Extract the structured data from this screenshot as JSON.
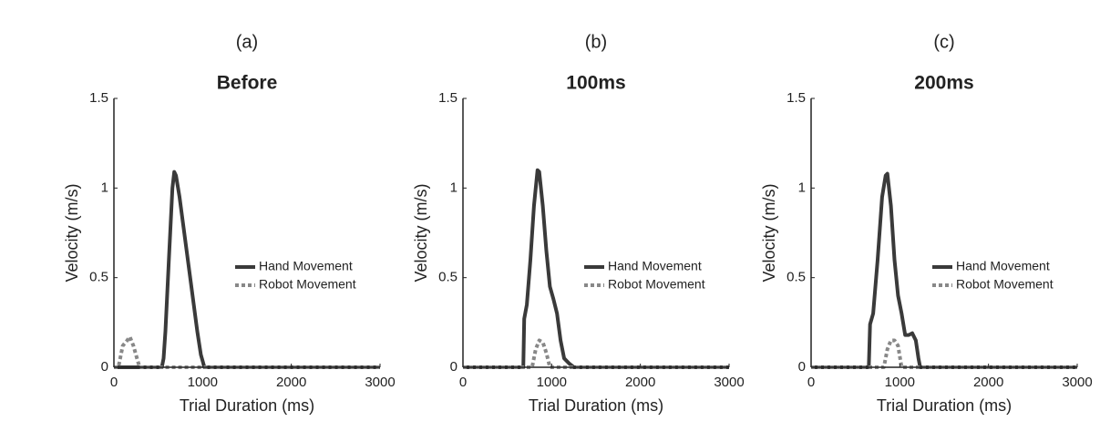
{
  "chart_data": [
    {
      "type": "line",
      "label": "(a)",
      "title": "Before",
      "xlabel": "Trial Duration (ms)",
      "ylabel": "Velocity (m/s)",
      "xlim": [
        0,
        3000
      ],
      "ylim": [
        0,
        1.5
      ],
      "xticks": [
        0,
        1000,
        2000,
        3000
      ],
      "yticks": [
        0,
        0.5,
        1,
        1.5
      ],
      "legend": "right",
      "series": [
        {
          "name": "Hand Movement",
          "color": "#3a3a3a",
          "style": "solid",
          "x": [
            0,
            540,
            560,
            580,
            620,
            660,
            680,
            700,
            740,
            780,
            820,
            860,
            900,
            940,
            980,
            1020,
            1100,
            3000
          ],
          "values": [
            0,
            0,
            0.05,
            0.2,
            0.6,
            1.0,
            1.09,
            1.07,
            0.95,
            0.8,
            0.65,
            0.5,
            0.35,
            0.2,
            0.07,
            0,
            0,
            0
          ]
        },
        {
          "name": "Robot Movement",
          "color": "#888888",
          "style": "dotted",
          "x": [
            0,
            50,
            100,
            150,
            180,
            220,
            260,
            290,
            3000
          ],
          "values": [
            0,
            0,
            0.12,
            0.15,
            0.17,
            0.12,
            0.05,
            0,
            0
          ]
        }
      ]
    },
    {
      "type": "line",
      "label": "(b)",
      "title": "100ms",
      "xlabel": "Trial Duration (ms)",
      "ylabel": "Velocity (m/s)",
      "xlim": [
        0,
        3000
      ],
      "ylim": [
        0,
        1.5
      ],
      "xticks": [
        0,
        1000,
        2000,
        3000
      ],
      "yticks": [
        0,
        0.5,
        1,
        1.5
      ],
      "legend": "right",
      "series": [
        {
          "name": "Hand Movement",
          "color": "#3a3a3a",
          "style": "solid",
          "x": [
            0,
            680,
            690,
            720,
            760,
            800,
            840,
            860,
            900,
            940,
            980,
            1020,
            1060,
            1100,
            1140,
            1200,
            1250,
            3000
          ],
          "values": [
            0,
            0,
            0.27,
            0.35,
            0.6,
            0.9,
            1.1,
            1.09,
            0.9,
            0.65,
            0.45,
            0.38,
            0.3,
            0.15,
            0.05,
            0.02,
            0,
            0
          ]
        },
        {
          "name": "Robot Movement",
          "color": "#888888",
          "style": "dotted",
          "x": [
            0,
            780,
            820,
            860,
            900,
            940,
            980,
            3000
          ],
          "values": [
            0,
            0,
            0.1,
            0.15,
            0.14,
            0.08,
            0,
            0
          ]
        }
      ]
    },
    {
      "type": "line",
      "label": "(c)",
      "title": "200ms",
      "xlabel": "Trial Duration (ms)",
      "ylabel": "Velocity (m/s)",
      "xlim": [
        0,
        3000
      ],
      "ylim": [
        0,
        1.5
      ],
      "xticks": [
        0,
        1000,
        2000,
        3000
      ],
      "yticks": [
        0,
        0.5,
        1,
        1.5
      ],
      "legend": "right",
      "series": [
        {
          "name": "Hand Movement",
          "color": "#3a3a3a",
          "style": "solid",
          "x": [
            0,
            650,
            665,
            700,
            750,
            800,
            840,
            860,
            900,
            940,
            980,
            1020,
            1060,
            1100,
            1140,
            1180,
            1210,
            1230,
            3000
          ],
          "values": [
            0,
            0,
            0.24,
            0.3,
            0.6,
            0.95,
            1.07,
            1.08,
            0.9,
            0.6,
            0.4,
            0.3,
            0.18,
            0.18,
            0.19,
            0.15,
            0.05,
            0,
            0
          ]
        },
        {
          "name": "Robot Movement",
          "color": "#888888",
          "style": "dotted",
          "x": [
            0,
            820,
            860,
            900,
            940,
            980,
            1020,
            3000
          ],
          "values": [
            0,
            0,
            0.1,
            0.15,
            0.15,
            0.12,
            0,
            0
          ]
        }
      ]
    }
  ]
}
